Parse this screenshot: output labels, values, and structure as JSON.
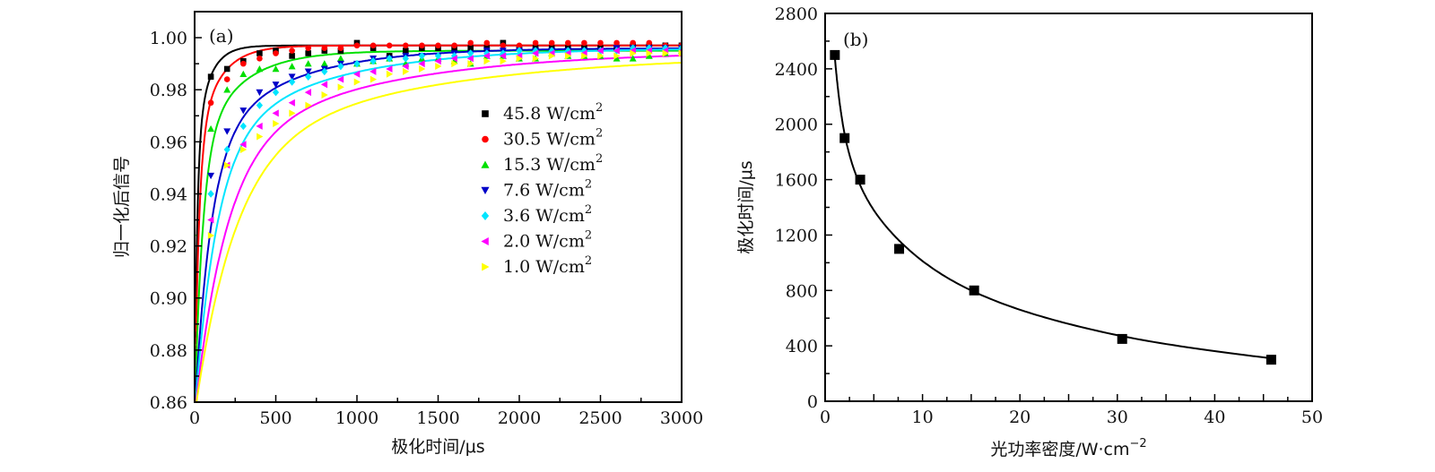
{
  "chart_data": [
    {
      "type": "scatter",
      "panel_label": "(a)",
      "title": "",
      "xlabel": "极化时间/μs",
      "ylabel": "归一化后信号",
      "xlim": [
        0,
        3000
      ],
      "ylim": [
        0.86,
        1.01
      ],
      "xticks": [
        0,
        500,
        1000,
        1500,
        2000,
        2500,
        3000
      ],
      "xtick_labels": [
        "0",
        "500",
        "1000",
        "1500",
        "2000",
        "2500",
        "3000"
      ],
      "yticks": [
        0.86,
        0.88,
        0.9,
        0.92,
        0.94,
        0.96,
        0.98,
        1.0
      ],
      "ytick_labels": [
        "0.86",
        "0.88",
        "0.90",
        "0.92",
        "0.94",
        "0.96",
        "0.98",
        "1.00"
      ],
      "grid": false,
      "legend_position": "center-right",
      "x": [
        0,
        100,
        200,
        300,
        400,
        500,
        600,
        700,
        800,
        900,
        1000,
        1100,
        1200,
        1300,
        1400,
        1500,
        1600,
        1700,
        1800,
        1900,
        2000,
        2100,
        2200,
        2300,
        2400,
        2500,
        2600,
        2700,
        2800,
        2900,
        3000
      ],
      "series": [
        {
          "name": "45.8 W/cm2",
          "label_main": "45.8 W/cm",
          "label_sup": "2",
          "color": "#000000",
          "marker": "square",
          "values": [
            0.886,
            0.985,
            0.988,
            0.991,
            0.994,
            0.995,
            0.993,
            0.994,
            0.995,
            0.995,
            0.998,
            0.996,
            0.993,
            0.995,
            0.996,
            0.996,
            0.996,
            0.996,
            0.996,
            0.998,
            0.996,
            0.996,
            0.996,
            0.996,
            0.996,
            0.996,
            0.996,
            0.997,
            0.997,
            0.997,
            0.997
          ],
          "fit_tau": 45
        },
        {
          "name": "30.5 W/cm2",
          "label_main": "30.5 W/cm",
          "label_sup": "2",
          "color": "#ff0000",
          "marker": "circle",
          "values": [
            0.878,
            0.975,
            0.984,
            0.99,
            0.992,
            0.994,
            0.995,
            0.996,
            0.996,
            0.996,
            0.997,
            0.997,
            0.997,
            0.997,
            0.997,
            0.997,
            0.997,
            0.998,
            0.998,
            0.997,
            0.997,
            0.998,
            0.998,
            0.998,
            0.998,
            0.998,
            0.998,
            0.998,
            0.998,
            0.997,
            0.997
          ],
          "fit_tau": 75
        },
        {
          "name": "15.3 W/cm2",
          "label_main": "15.3 W/cm",
          "label_sup": "2",
          "color": "#00e000",
          "marker": "triangle-up",
          "values": [
            0.925,
            0.965,
            0.98,
            0.986,
            0.988,
            0.988,
            0.989,
            0.99,
            0.99,
            0.992,
            0.99,
            0.991,
            0.992,
            0.99,
            0.992,
            0.992,
            0.991,
            0.99,
            0.993,
            0.993,
            0.992,
            0.992,
            0.994,
            0.993,
            0.993,
            0.993,
            0.992,
            0.992,
            0.993,
            0.994,
            0.995
          ],
          "fit_tau": 140
        },
        {
          "name": "7.6 W/cm2",
          "label_main": "7.6 W/cm",
          "label_sup": "2",
          "color": "#0000c8",
          "marker": "triangle-down",
          "values": [
            0.866,
            0.947,
            0.964,
            0.972,
            0.979,
            0.982,
            0.985,
            0.987,
            0.988,
            0.99,
            0.99,
            0.992,
            0.992,
            0.993,
            0.993,
            0.993,
            0.994,
            0.994,
            0.995,
            0.995,
            0.995,
            0.995,
            0.995,
            0.995,
            0.995,
            0.995,
            0.996,
            0.996,
            0.996,
            0.996,
            0.996
          ],
          "fit_tau": 280
        },
        {
          "name": "3.6 W/cm2",
          "label_main": "3.6 W/cm",
          "label_sup": "2",
          "color": "#00e5ff",
          "marker": "diamond",
          "values": [
            0.87,
            0.94,
            0.957,
            0.966,
            0.974,
            0.979,
            0.983,
            0.985,
            0.987,
            0.989,
            0.99,
            0.991,
            0.992,
            0.992,
            0.993,
            0.993,
            0.993,
            0.994,
            0.994,
            0.994,
            0.995,
            0.995,
            0.995,
            0.995,
            0.995,
            0.995,
            0.995,
            0.996,
            0.996,
            0.996,
            0.996
          ],
          "fit_tau": 380
        },
        {
          "name": "2.0 W/cm2",
          "label_main": "2.0 W/cm",
          "label_sup": "2",
          "color": "#ff00ff",
          "marker": "triangle-left",
          "values": [
            0.875,
            0.93,
            0.951,
            0.959,
            0.966,
            0.971,
            0.975,
            0.979,
            0.982,
            0.984,
            0.986,
            0.987,
            0.988,
            0.989,
            0.99,
            0.991,
            0.992,
            0.992,
            0.993,
            0.993,
            0.993,
            0.994,
            0.994,
            0.994,
            0.994,
            0.995,
            0.995,
            0.995,
            0.995,
            0.995,
            0.995
          ],
          "fit_tau": 550
        },
        {
          "name": "1.0 W/cm2",
          "label_main": "1.0 W/cm",
          "label_sup": "2",
          "color": "#ffff00",
          "marker": "triangle-right",
          "values": [
            0.882,
            0.924,
            0.951,
            0.957,
            0.962,
            0.967,
            0.971,
            0.974,
            0.978,
            0.981,
            0.983,
            0.984,
            0.986,
            0.987,
            0.988,
            0.989,
            0.99,
            0.99,
            0.991,
            0.991,
            0.992,
            0.992,
            0.993,
            0.993,
            0.993,
            0.993,
            0.993,
            0.994,
            0.994,
            0.994,
            0.994
          ],
          "fit_tau": 700
        }
      ]
    },
    {
      "type": "scatter",
      "panel_label": "(b)",
      "title": "",
      "xlabel": "光功率密度/W·cm",
      "xlabel_sup": "−2",
      "ylabel": "极化时间/μs",
      "xlim": [
        0,
        50
      ],
      "ylim": [
        0,
        2800
      ],
      "xticks": [
        0,
        10,
        20,
        30,
        40,
        50
      ],
      "xtick_labels": [
        "0",
        "10",
        "20",
        "30",
        "40",
        "50"
      ],
      "yticks": [
        0,
        400,
        800,
        1200,
        1600,
        2000,
        2400,
        2800
      ],
      "ytick_labels": [
        "0",
        "400",
        "800",
        "1200",
        "1600",
        "2000",
        "2400",
        "2800"
      ],
      "grid": false,
      "series": [
        {
          "name": "polarization time",
          "color": "#000000",
          "marker": "square",
          "x": [
            1.0,
            2.0,
            3.6,
            7.6,
            15.3,
            30.5,
            45.8
          ],
          "y": [
            2500,
            1900,
            1600,
            1100,
            800,
            450,
            300
          ]
        }
      ],
      "fit_line": {
        "color": "#000000"
      }
    }
  ]
}
